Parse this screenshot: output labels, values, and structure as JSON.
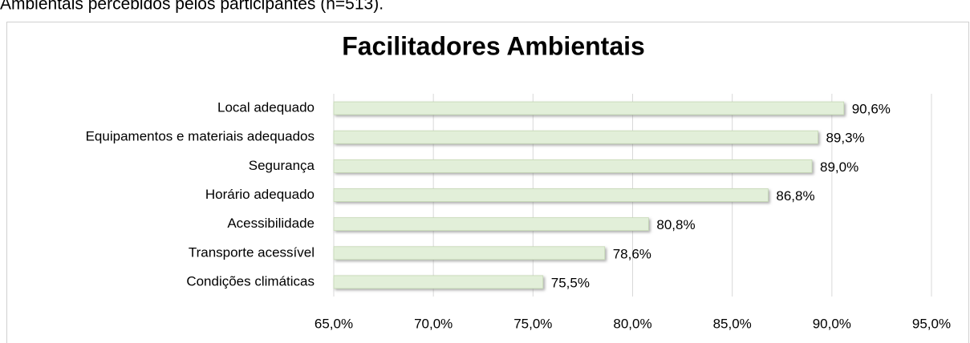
{
  "chart_data": {
    "type": "bar",
    "orientation": "horizontal",
    "caption": "Ambientais percebidos pelos participantes (n=513).",
    "title": "Facilitadores Ambientais",
    "categories": [
      "Local adequado",
      "Equipamentos e materiais adequados",
      "Segurança",
      "Horário adequado",
      "Acessibilidade",
      "Transporte acessível",
      "Condições climáticas"
    ],
    "values": [
      90.6,
      89.3,
      89.0,
      86.8,
      80.8,
      78.6,
      75.5
    ],
    "value_labels": [
      "90,6%",
      "89,3%",
      "89,0%",
      "86,8%",
      "80,8%",
      "78,6%",
      "75,5%"
    ],
    "color": "#e2efd9",
    "xlim": [
      65,
      95
    ],
    "xticks": [
      {
        "value": 65,
        "label": "65,0%"
      },
      {
        "value": 70,
        "label": "70,0%"
      },
      {
        "value": 75,
        "label": "75,0%"
      },
      {
        "value": 80,
        "label": "80,0%"
      },
      {
        "value": 85,
        "label": "85,0%"
      },
      {
        "value": 90,
        "label": "90,0%"
      },
      {
        "value": 95,
        "label": "95,0%"
      }
    ],
    "grid": true
  }
}
